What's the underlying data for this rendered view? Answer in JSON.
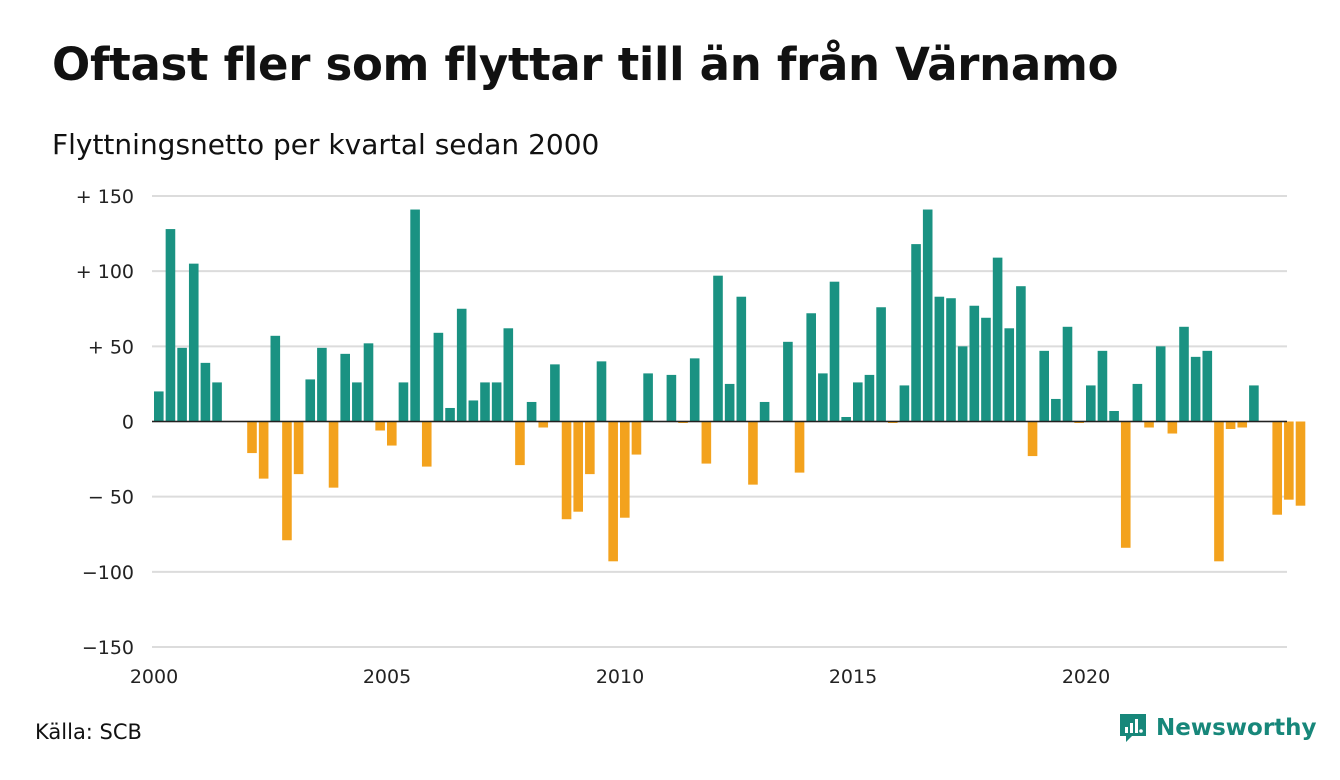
{
  "header": {
    "title": "Oftast fler som flyttar till än från Värnamo",
    "subtitle": "Flyttningsnetto per kvartal sedan 2000"
  },
  "footer": {
    "source": "Källa: SCB",
    "brand": "Newsworthy"
  },
  "colors": {
    "positive": "#1a9282",
    "negative": "#f3a21d",
    "grid": "#dcdcdc",
    "brand": "#17877a"
  },
  "chart_data": {
    "type": "bar",
    "title": "Oftast fler som flyttar till än från Värnamo",
    "subtitle": "Flyttningsnetto per kvartal sedan 2000",
    "xlabel": "",
    "ylabel": "",
    "ylim": [
      -150,
      150
    ],
    "y_ticks": [
      150,
      100,
      50,
      0,
      -50,
      -100,
      -150
    ],
    "y_tick_labels": [
      "+ 150",
      "+ 100",
      "+  50",
      "0",
      "− 50",
      "−100",
      "−150"
    ],
    "x_ticks": [
      2000,
      2005,
      2010,
      2015,
      2020
    ],
    "x_tick_labels": [
      "2000",
      "2005",
      "2010",
      "2015",
      "2020"
    ],
    "grid": true,
    "legend": "none",
    "start_year": 2000,
    "period": "quarter",
    "values": [
      20,
      128,
      49,
      105,
      39,
      26,
      0,
      0,
      -21,
      -38,
      57,
      -79,
      -35,
      28,
      49,
      -44,
      45,
      26,
      52,
      -6,
      -16,
      26,
      141,
      -30,
      59,
      9,
      75,
      14,
      26,
      26,
      62,
      -29,
      13,
      -4,
      38,
      -65,
      -60,
      -35,
      40,
      -93,
      -64,
      -22,
      32,
      0,
      31,
      -1,
      42,
      -28,
      97,
      25,
      83,
      -42,
      13,
      0,
      53,
      -34,
      72,
      32,
      93,
      3,
      26,
      31,
      76,
      -1,
      24,
      118,
      141,
      83,
      82,
      50,
      77,
      69,
      109,
      62,
      90,
      -23,
      47,
      15,
      63,
      -1,
      24,
      47,
      7,
      -84,
      25,
      -4,
      50,
      -8,
      63,
      43,
      47,
      -93,
      -5,
      -4,
      24,
      0,
      -62,
      -52,
      -56
    ]
  }
}
